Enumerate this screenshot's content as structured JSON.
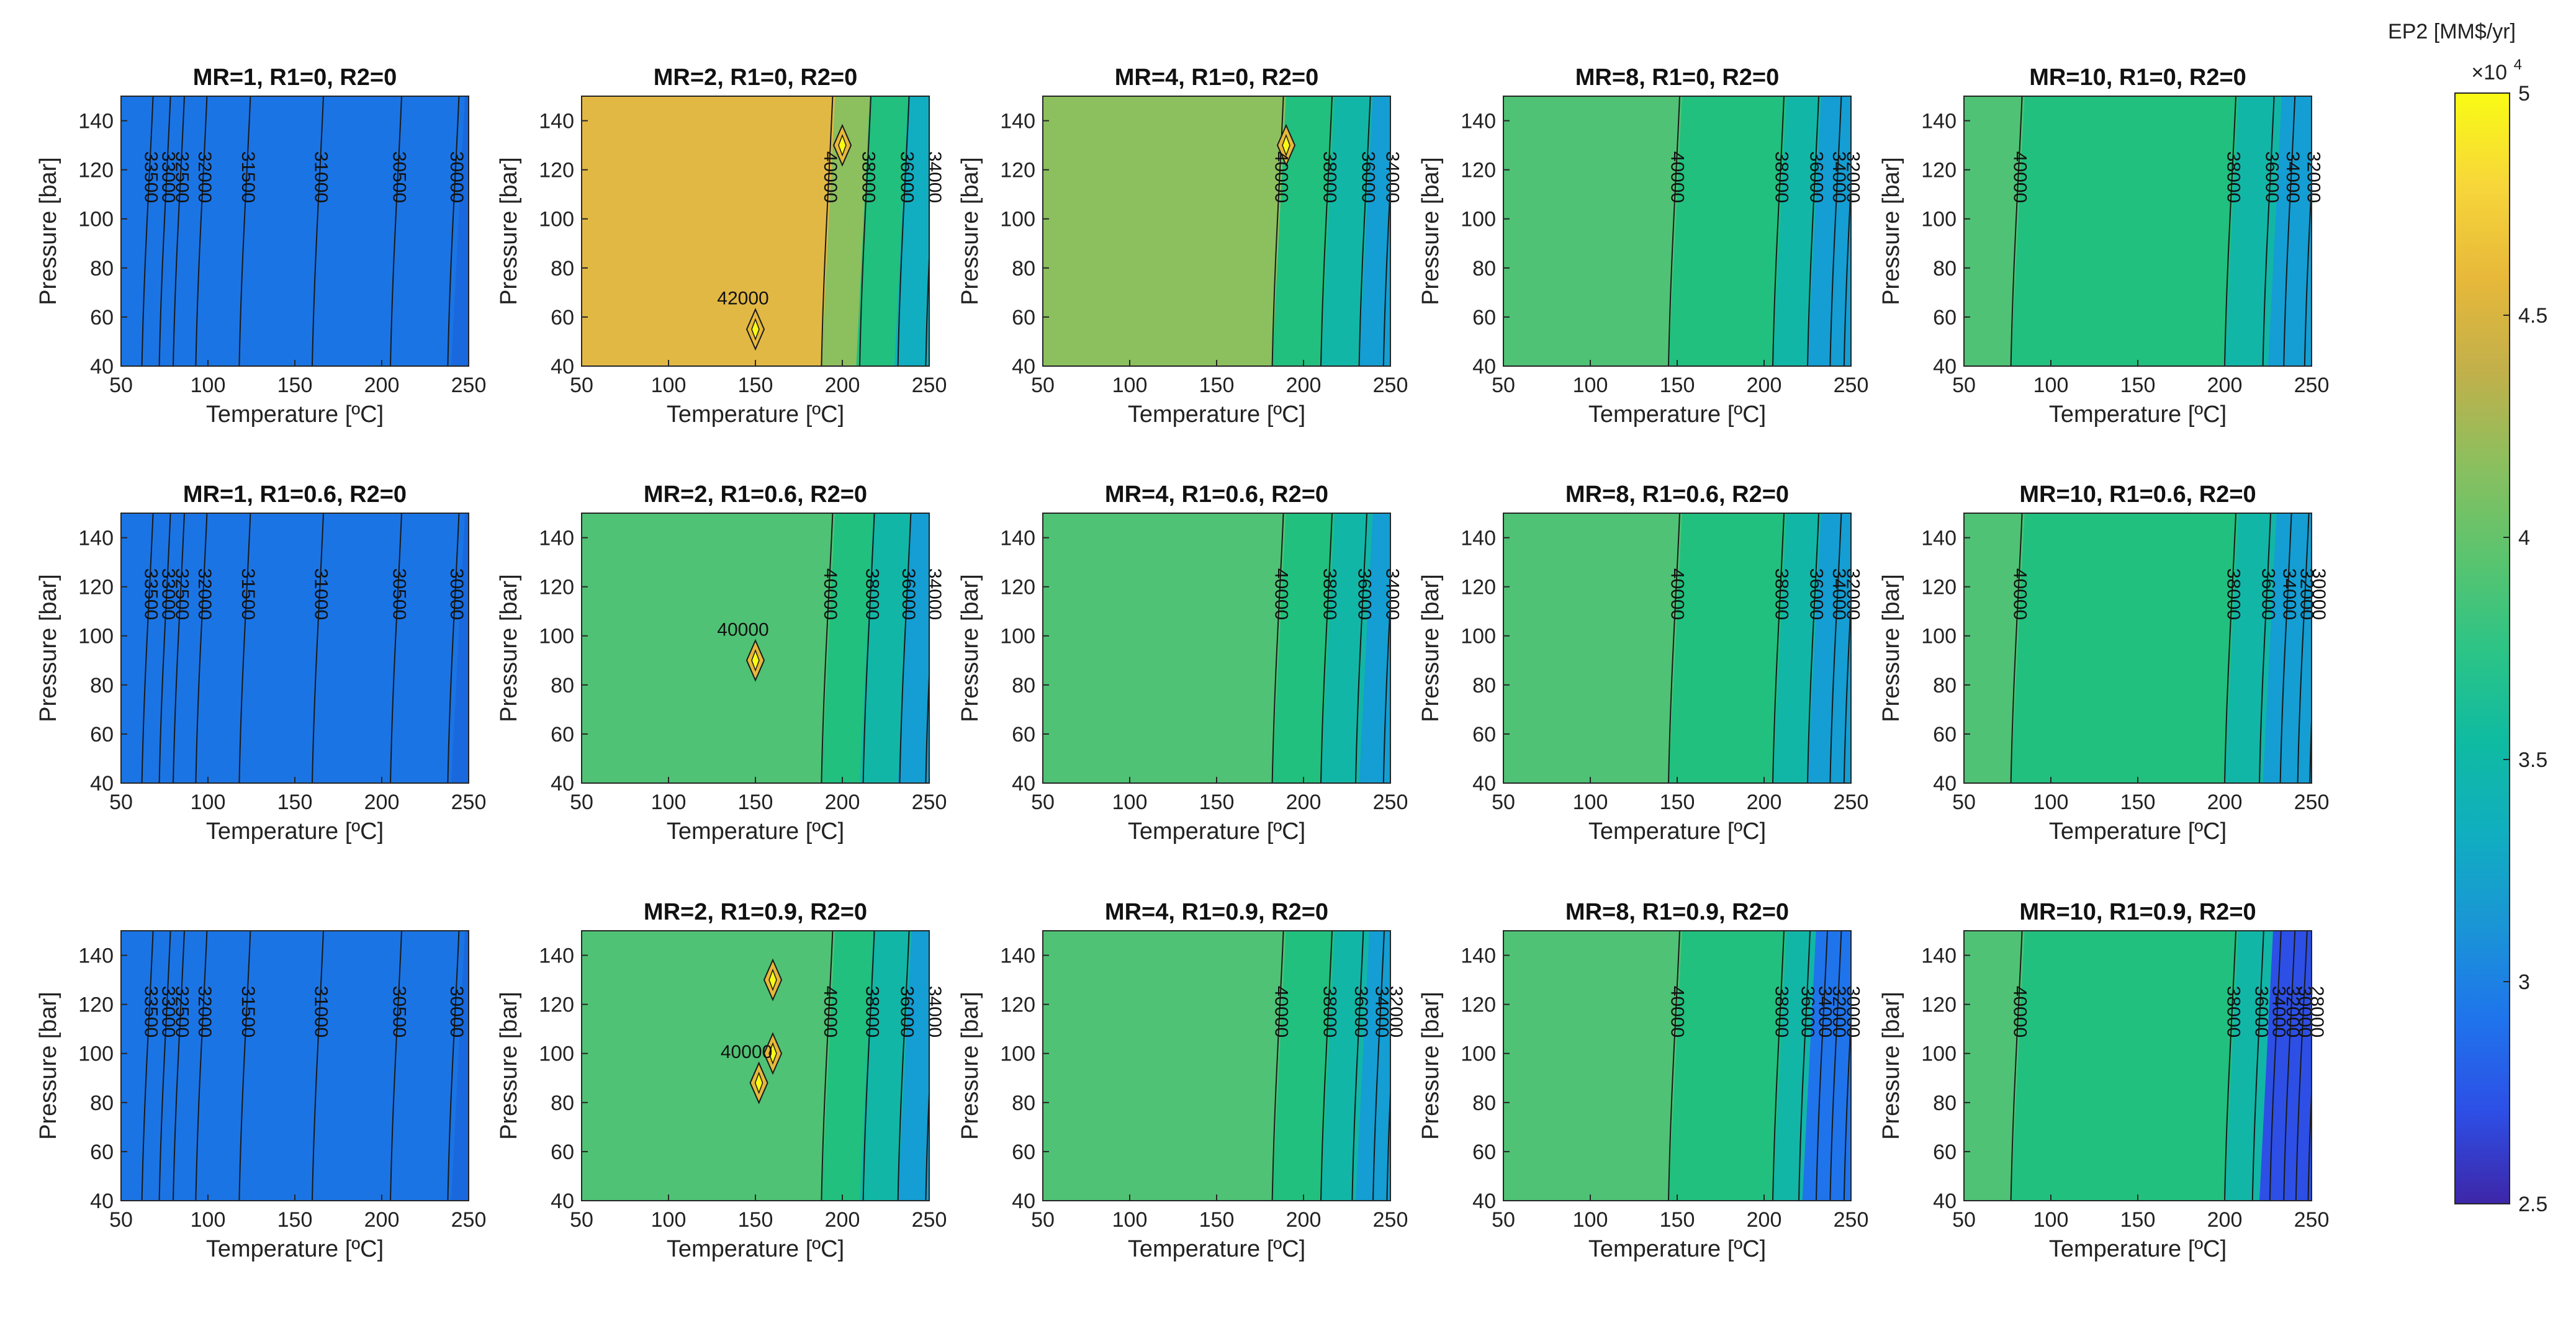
{
  "colorbar": {
    "title": "EP2 [MM$/yr]",
    "exponent_base": "×10",
    "exponent_power": "4",
    "min": 2.5,
    "max": 5,
    "ticks": [
      "2.5",
      "3",
      "3.5",
      "4",
      "4.5",
      "5"
    ],
    "tick_values": [
      2.5,
      3,
      3.5,
      4,
      4.5,
      5
    ],
    "palette": [
      "#3e26a8",
      "#2d4fe6",
      "#1f74ec",
      "#1a95d6",
      "#10aec0",
      "#0fbba1",
      "#2dc486",
      "#5bc46e",
      "#8cbf5e",
      "#c2b04a",
      "#e7b83a",
      "#f7d63a",
      "#f9fb14"
    ]
  },
  "axes_common": {
    "xlabel": "Temperature [ºC]",
    "ylabel": "Pressure [bar]",
    "xticks": [
      "50",
      "100",
      "150",
      "200",
      "250"
    ],
    "yticks": [
      "40",
      "60",
      "80",
      "100",
      "120",
      "140"
    ]
  },
  "chart_data": [
    {
      "type": "contour",
      "title": "MR=1, R1=0, R2=0",
      "xlim": [
        50,
        250
      ],
      "ylim": [
        40,
        150
      ],
      "fill": "#1b74e4",
      "fill_regions": [
        {
          "x_from": 50,
          "x_to": 250,
          "color": "#1b74e4"
        },
        {
          "x_from": 240,
          "x_to": 250,
          "color": "#1968de"
        }
      ],
      "contours": [
        {
          "x": 62,
          "label": "33500"
        },
        {
          "x": 72,
          "label": "33000"
        },
        {
          "x": 80,
          "label": "32500"
        },
        {
          "x": 93,
          "label": "32000"
        },
        {
          "x": 118,
          "label": "31500"
        },
        {
          "x": 160,
          "label": "31000"
        },
        {
          "x": 205,
          "label": "30500"
        },
        {
          "x": 238,
          "label": "30000"
        }
      ]
    },
    {
      "type": "contour",
      "title": "MR=2, R1=0, R2=0",
      "xlim": [
        50,
        250
      ],
      "ylim": [
        40,
        150
      ],
      "fill": "#e2b845",
      "fill_regions": [
        {
          "x_from": 50,
          "x_to": 188,
          "color": "#e2b845"
        },
        {
          "x_from": 188,
          "x_to": 208,
          "color": "#8cbf5e"
        },
        {
          "x_from": 208,
          "x_to": 230,
          "color": "#21c07e"
        },
        {
          "x_from": 230,
          "x_to": 250,
          "color": "#10aec0"
        }
      ],
      "contours": [
        {
          "x": 188,
          "label": "40000"
        },
        {
          "x": 210,
          "label": "38000"
        },
        {
          "x": 232,
          "label": "36000"
        },
        {
          "x": 248,
          "label": "34000"
        }
      ],
      "features": [
        {
          "label": "42000",
          "x": 150,
          "y": 55
        },
        {
          "label": "",
          "x": 200,
          "y": 130
        }
      ]
    },
    {
      "type": "contour",
      "title": "MR=4, R1=0, R2=0",
      "xlim": [
        50,
        250
      ],
      "ylim": [
        40,
        150
      ],
      "fill": "#8cbf5e",
      "fill_regions": [
        {
          "x_from": 50,
          "x_to": 182,
          "color": "#8cbf5e"
        },
        {
          "x_from": 182,
          "x_to": 210,
          "color": "#21c07e"
        },
        {
          "x_from": 210,
          "x_to": 232,
          "color": "#12b6a6"
        },
        {
          "x_from": 232,
          "x_to": 250,
          "color": "#149ed3"
        }
      ],
      "contours": [
        {
          "x": 182,
          "label": "40000"
        },
        {
          "x": 210,
          "label": "38000"
        },
        {
          "x": 232,
          "label": "36000"
        },
        {
          "x": 246,
          "label": "34000"
        }
      ],
      "features": [
        {
          "label": "",
          "x": 190,
          "y": 130
        }
      ]
    },
    {
      "type": "contour",
      "title": "MR=8, R1=0, R2=0",
      "xlim": [
        50,
        250
      ],
      "ylim": [
        40,
        150
      ],
      "fill": "#4fc275",
      "fill_regions": [
        {
          "x_from": 50,
          "x_to": 145,
          "color": "#4fc275"
        },
        {
          "x_from": 145,
          "x_to": 205,
          "color": "#21c07e"
        },
        {
          "x_from": 205,
          "x_to": 225,
          "color": "#12b6a6"
        },
        {
          "x_from": 225,
          "x_to": 250,
          "color": "#149ed3"
        }
      ],
      "contours": [
        {
          "x": 145,
          "label": "40000"
        },
        {
          "x": 205,
          "label": "38000"
        },
        {
          "x": 225,
          "label": "36000"
        },
        {
          "x": 238,
          "label": "34000"
        },
        {
          "x": 246,
          "label": "32000"
        }
      ]
    },
    {
      "type": "contour",
      "title": "MR=10, R1=0, R2=0",
      "xlim": [
        50,
        250
      ],
      "ylim": [
        40,
        150
      ],
      "fill": "#21c07e",
      "fill_regions": [
        {
          "x_from": 50,
          "x_to": 77,
          "color": "#4fc275"
        },
        {
          "x_from": 77,
          "x_to": 200,
          "color": "#21c07e"
        },
        {
          "x_from": 200,
          "x_to": 225,
          "color": "#12b6a6"
        },
        {
          "x_from": 225,
          "x_to": 250,
          "color": "#149ed3"
        }
      ],
      "contours": [
        {
          "x": 77,
          "label": "40000"
        },
        {
          "x": 200,
          "label": "38000"
        },
        {
          "x": 222,
          "label": "36000"
        },
        {
          "x": 234,
          "label": "34000"
        },
        {
          "x": 246,
          "label": "32000"
        }
      ]
    },
    {
      "type": "contour",
      "title": "MR=1, R1=0.6, R2=0",
      "xlim": [
        50,
        250
      ],
      "ylim": [
        40,
        150
      ],
      "fill": "#1b74e4",
      "fill_regions": [
        {
          "x_from": 50,
          "x_to": 250,
          "color": "#1b74e4"
        },
        {
          "x_from": 240,
          "x_to": 250,
          "color": "#1968de"
        }
      ],
      "contours": [
        {
          "x": 62,
          "label": "33500"
        },
        {
          "x": 72,
          "label": "33000"
        },
        {
          "x": 80,
          "label": "32500"
        },
        {
          "x": 93,
          "label": "32000"
        },
        {
          "x": 118,
          "label": "31500"
        },
        {
          "x": 160,
          "label": "31000"
        },
        {
          "x": 205,
          "label": "30500"
        },
        {
          "x": 238,
          "label": "30000"
        }
      ]
    },
    {
      "type": "contour",
      "title": "MR=2, R1=0.6, R2=0",
      "xlim": [
        50,
        250
      ],
      "ylim": [
        40,
        150
      ],
      "fill": "#4fc275",
      "fill_regions": [
        {
          "x_from": 50,
          "x_to": 188,
          "color": "#4fc275"
        },
        {
          "x_from": 188,
          "x_to": 210,
          "color": "#21c07e"
        },
        {
          "x_from": 210,
          "x_to": 232,
          "color": "#12b6a6"
        },
        {
          "x_from": 232,
          "x_to": 250,
          "color": "#149ed3"
        }
      ],
      "contours": [
        {
          "x": 188,
          "label": "40000"
        },
        {
          "x": 212,
          "label": "38000"
        },
        {
          "x": 233,
          "label": "36000"
        },
        {
          "x": 248,
          "label": "34000"
        }
      ],
      "features": [
        {
          "label": "40000",
          "x": 150,
          "y": 90
        }
      ]
    },
    {
      "type": "contour",
      "title": "MR=4, R1=0.6, R2=0",
      "xlim": [
        50,
        250
      ],
      "ylim": [
        40,
        150
      ],
      "fill": "#4fc275",
      "fill_regions": [
        {
          "x_from": 50,
          "x_to": 182,
          "color": "#4fc275"
        },
        {
          "x_from": 182,
          "x_to": 210,
          "color": "#21c07e"
        },
        {
          "x_from": 210,
          "x_to": 232,
          "color": "#12b6a6"
        },
        {
          "x_from": 232,
          "x_to": 250,
          "color": "#149ed3"
        }
      ],
      "contours": [
        {
          "x": 182,
          "label": "40000"
        },
        {
          "x": 210,
          "label": "38000"
        },
        {
          "x": 230,
          "label": "36000"
        },
        {
          "x": 246,
          "label": "34000"
        }
      ]
    },
    {
      "type": "contour",
      "title": "MR=8, R1=0.6, R2=0",
      "xlim": [
        50,
        250
      ],
      "ylim": [
        40,
        150
      ],
      "fill": "#4fc275",
      "fill_regions": [
        {
          "x_from": 50,
          "x_to": 145,
          "color": "#4fc275"
        },
        {
          "x_from": 145,
          "x_to": 205,
          "color": "#21c07e"
        },
        {
          "x_from": 205,
          "x_to": 225,
          "color": "#12b6a6"
        },
        {
          "x_from": 225,
          "x_to": 250,
          "color": "#149ed3"
        }
      ],
      "contours": [
        {
          "x": 145,
          "label": "40000"
        },
        {
          "x": 205,
          "label": "38000"
        },
        {
          "x": 225,
          "label": "36000"
        },
        {
          "x": 238,
          "label": "34000"
        },
        {
          "x": 246,
          "label": "32000"
        }
      ]
    },
    {
      "type": "contour",
      "title": "MR=10, R1=0.6, R2=0",
      "xlim": [
        50,
        250
      ],
      "ylim": [
        40,
        150
      ],
      "fill": "#21c07e",
      "fill_regions": [
        {
          "x_from": 50,
          "x_to": 77,
          "color": "#4fc275"
        },
        {
          "x_from": 77,
          "x_to": 200,
          "color": "#21c07e"
        },
        {
          "x_from": 200,
          "x_to": 222,
          "color": "#12b6a6"
        },
        {
          "x_from": 222,
          "x_to": 250,
          "color": "#149ed3"
        }
      ],
      "contours": [
        {
          "x": 77,
          "label": "40000"
        },
        {
          "x": 200,
          "label": "38000"
        },
        {
          "x": 220,
          "label": "36000"
        },
        {
          "x": 232,
          "label": "34000"
        },
        {
          "x": 242,
          "label": "32000"
        },
        {
          "x": 249,
          "label": "30000"
        }
      ]
    },
    {
      "type": "contour",
      "title": "",
      "xlim": [
        50,
        250
      ],
      "ylim": [
        40,
        150
      ],
      "fill": "#1b74e4",
      "fill_regions": [
        {
          "x_from": 50,
          "x_to": 250,
          "color": "#1b74e4"
        },
        {
          "x_from": 240,
          "x_to": 250,
          "color": "#1968de"
        }
      ],
      "contours": [
        {
          "x": 62,
          "label": "33500"
        },
        {
          "x": 72,
          "label": "33000"
        },
        {
          "x": 80,
          "label": "32500"
        },
        {
          "x": 93,
          "label": "32000"
        },
        {
          "x": 118,
          "label": "31500"
        },
        {
          "x": 160,
          "label": "31000"
        },
        {
          "x": 205,
          "label": "30500"
        },
        {
          "x": 238,
          "label": "30000"
        }
      ]
    },
    {
      "type": "contour",
      "title": "MR=2, R1=0.9, R2=0",
      "xlim": [
        50,
        250
      ],
      "ylim": [
        40,
        150
      ],
      "fill": "#4fc275",
      "fill_regions": [
        {
          "x_from": 50,
          "x_to": 188,
          "color": "#4fc275"
        },
        {
          "x_from": 188,
          "x_to": 210,
          "color": "#21c07e"
        },
        {
          "x_from": 210,
          "x_to": 232,
          "color": "#12b6a6"
        },
        {
          "x_from": 232,
          "x_to": 250,
          "color": "#149ed3"
        }
      ],
      "contours": [
        {
          "x": 188,
          "label": "40000"
        },
        {
          "x": 212,
          "label": "38000"
        },
        {
          "x": 232,
          "label": "36000"
        },
        {
          "x": 248,
          "label": "34000"
        }
      ],
      "features": [
        {
          "label": "",
          "x": 160,
          "y": 130
        },
        {
          "label": "",
          "x": 160,
          "y": 100
        },
        {
          "label": "40000",
          "x": 152,
          "y": 88
        }
      ]
    },
    {
      "type": "contour",
      "title": "MR=4, R1=0.9, R2=0",
      "xlim": [
        50,
        250
      ],
      "ylim": [
        40,
        150
      ],
      "fill": "#4fc275",
      "fill_regions": [
        {
          "x_from": 50,
          "x_to": 182,
          "color": "#4fc275"
        },
        {
          "x_from": 182,
          "x_to": 210,
          "color": "#21c07e"
        },
        {
          "x_from": 210,
          "x_to": 230,
          "color": "#12b6a6"
        },
        {
          "x_from": 230,
          "x_to": 250,
          "color": "#149ed3"
        }
      ],
      "contours": [
        {
          "x": 182,
          "label": "40000"
        },
        {
          "x": 210,
          "label": "38000"
        },
        {
          "x": 228,
          "label": "36000"
        },
        {
          "x": 240,
          "label": "34000"
        },
        {
          "x": 248,
          "label": "32000"
        }
      ]
    },
    {
      "type": "contour",
      "title": "MR=8, R1=0.9, R2=0",
      "xlim": [
        50,
        250
      ],
      "ylim": [
        40,
        150
      ],
      "fill": "#4fc275",
      "fill_regions": [
        {
          "x_from": 50,
          "x_to": 145,
          "color": "#4fc275"
        },
        {
          "x_from": 145,
          "x_to": 205,
          "color": "#21c07e"
        },
        {
          "x_from": 205,
          "x_to": 222,
          "color": "#12b6a6"
        },
        {
          "x_from": 222,
          "x_to": 250,
          "color": "#1f74ec"
        }
      ],
      "contours": [
        {
          "x": 145,
          "label": "40000"
        },
        {
          "x": 205,
          "label": "38000"
        },
        {
          "x": 220,
          "label": "36000"
        },
        {
          "x": 230,
          "label": "34000"
        },
        {
          "x": 238,
          "label": "32000"
        },
        {
          "x": 246,
          "label": "30000"
        }
      ]
    },
    {
      "type": "contour",
      "title": "MR=10, R1=0.9, R2=0",
      "xlim": [
        50,
        250
      ],
      "ylim": [
        40,
        150
      ],
      "fill": "#21c07e",
      "fill_regions": [
        {
          "x_from": 50,
          "x_to": 77,
          "color": "#4fc275"
        },
        {
          "x_from": 77,
          "x_to": 200,
          "color": "#21c07e"
        },
        {
          "x_from": 200,
          "x_to": 220,
          "color": "#12b6a6"
        },
        {
          "x_from": 220,
          "x_to": 250,
          "color": "#2d4fe6"
        }
      ],
      "contours": [
        {
          "x": 77,
          "label": "40000"
        },
        {
          "x": 200,
          "label": "38000"
        },
        {
          "x": 216,
          "label": "36000"
        },
        {
          "x": 226,
          "label": "34000"
        },
        {
          "x": 234,
          "label": "32000"
        },
        {
          "x": 241,
          "label": "30000"
        },
        {
          "x": 248,
          "label": "28000"
        }
      ]
    }
  ]
}
